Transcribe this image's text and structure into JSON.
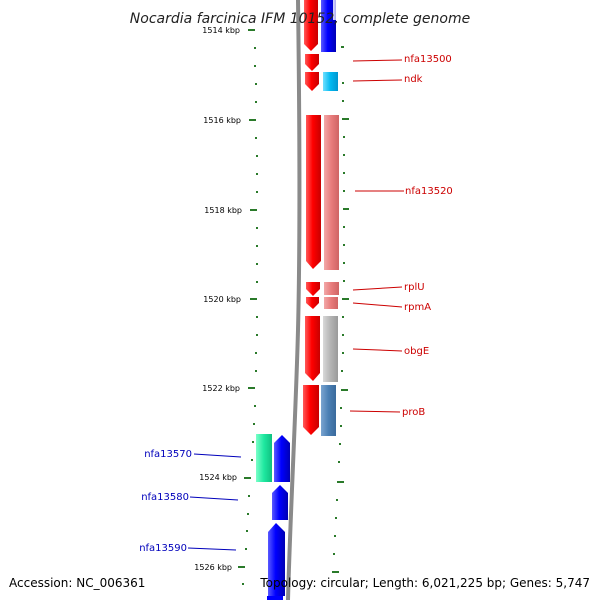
{
  "header": {
    "title": "Nocardia farcinica IFM 10152, complete genome"
  },
  "footer": {
    "accession": "Accession: NC_006361",
    "summary": "Topology: circular; Length: 6,021,225 bp; Genes: 5,747"
  },
  "scale": {
    "ticks": [
      {
        "label": "1514 kbp"
      },
      {
        "label": "1516 kbp"
      },
      {
        "label": "1518 kbp"
      },
      {
        "label": "1520 kbp"
      },
      {
        "label": "1522 kbp"
      },
      {
        "label": "1524 kbp"
      },
      {
        "label": "1526 kbp"
      }
    ]
  },
  "genes": {
    "right": [
      {
        "label": "nfa13500",
        "color": "#cc0000"
      },
      {
        "label": "ndk",
        "color": "#cc0000"
      },
      {
        "label": "nfa13520",
        "color": "#cc0000"
      },
      {
        "label": "rplU",
        "color": "#cc0000"
      },
      {
        "label": "rpmA",
        "color": "#cc0000"
      },
      {
        "label": "obgE",
        "color": "#cc0000"
      },
      {
        "label": "proB",
        "color": "#cc0000"
      }
    ],
    "left": [
      {
        "label": "nfa13570",
        "color": "#0000bb"
      },
      {
        "label": "nfa13580",
        "color": "#0000bb"
      },
      {
        "label": "nfa13590",
        "color": "#0000bb"
      }
    ]
  },
  "colors": {
    "forward_strand": "#ff0000",
    "reverse_strand": "#0000ff",
    "backbone": "#8a8a8a",
    "tick": "#2a7a2a"
  }
}
